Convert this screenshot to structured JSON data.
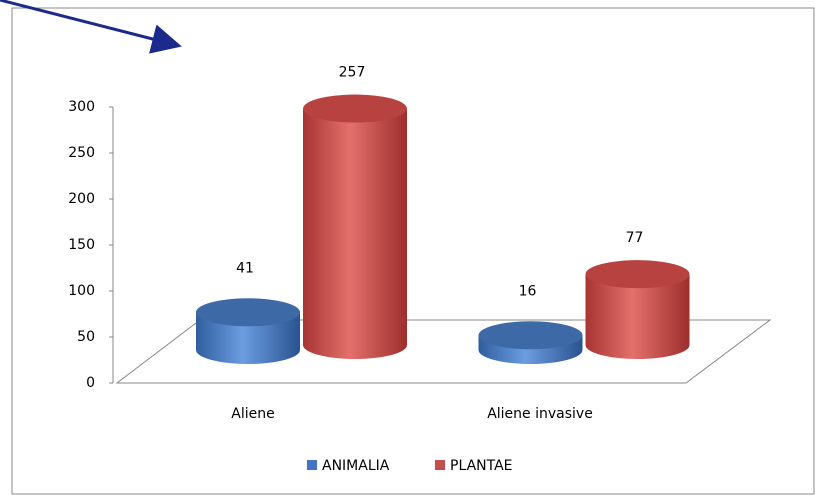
{
  "chart_data": {
    "type": "bar3d",
    "categories": [
      "Aliene",
      "Aliene invasive"
    ],
    "series": [
      {
        "name": "ANIMALIA",
        "color": "#4472c4",
        "values": [
          41,
          16
        ]
      },
      {
        "name": "PLANTAE",
        "color": "#c0504d",
        "values": [
          257,
          77
        ]
      }
    ],
    "ylim": [
      0,
      300
    ],
    "yticks": [
      0,
      50,
      100,
      150,
      200,
      250,
      300
    ],
    "legend": "bottom"
  }
}
